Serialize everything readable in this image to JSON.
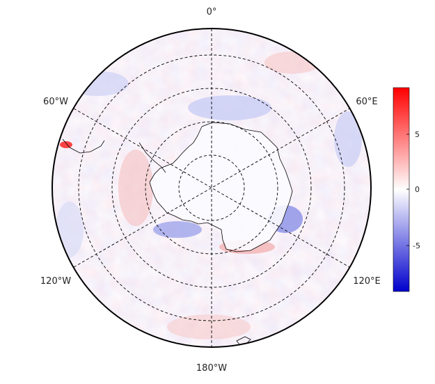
{
  "map": {
    "projection": "south-polar-stereographic",
    "meridian_labels": {
      "top": "0°",
      "upper_right": "60°E",
      "lower_right": "120°E",
      "bottom": "180°W",
      "lower_left": "120°W",
      "upper_left": "60°W"
    },
    "graticule": {
      "parallels_dashed": true,
      "meridians_dashed": true,
      "circles": 4
    },
    "field": {
      "description_colors": {
        "positive": "#ff0000",
        "neutral": "#ffffff",
        "negative": "#0000ff"
      }
    }
  },
  "colorbar": {
    "ticks": [
      "5",
      "0",
      "-5"
    ],
    "min": -9,
    "max": 9,
    "colors": {
      "top": "#ff0000",
      "mid": "#ffffff",
      "bottom": "#0000cc"
    }
  }
}
